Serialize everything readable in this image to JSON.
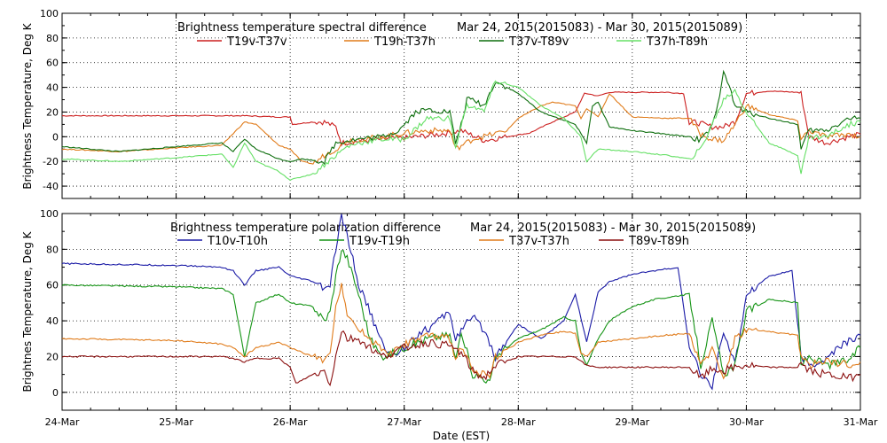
{
  "xlabel": "Date (EST)",
  "x_ticks": [
    "24-Mar",
    "25-Mar",
    "26-Mar",
    "27-Mar",
    "28-Mar",
    "29-Mar",
    "30-Mar",
    "31-Mar"
  ],
  "chart_data": [
    {
      "type": "line",
      "title": "Brightness temperature spectral difference",
      "date_range": "Mar 24, 2015(2015083) - Mar 30, 2015(2015089)",
      "ylabel": "Brightness Temperature, Deg K",
      "xlabel": "Date (EST)",
      "xlim": [
        0,
        7
      ],
      "ylim": [
        -50,
        100
      ],
      "yticks": [
        -40,
        -20,
        0,
        20,
        40,
        60,
        80,
        100
      ],
      "grid": true,
      "series": [
        {
          "name": "T19v-T37v",
          "color": "#cc1f1f",
          "x": [
            0,
            1,
            1.2,
            1.4,
            1.5,
            1.6,
            1.9,
            2.0,
            2.02,
            2.2,
            2.3,
            2.4,
            2.45,
            2.8,
            3.0,
            3.3,
            3.5,
            3.7,
            3.9,
            4.1,
            4.3,
            4.5,
            4.58,
            4.6,
            4.7,
            4.8,
            5.0,
            5.3,
            5.45,
            5.5,
            5.55,
            5.7,
            5.8,
            5.9,
            6.0,
            6.2,
            6.45,
            6.48,
            6.55,
            6.7,
            6.9,
            7.0
          ],
          "y": [
            17,
            17,
            17,
            17,
            17,
            17,
            16,
            16,
            10,
            12,
            12,
            8,
            -5,
            -2,
            -1,
            2,
            5,
            -3,
            0,
            3,
            12,
            20,
            35,
            35,
            33,
            36,
            36,
            36,
            35,
            10,
            12,
            8,
            8,
            12,
            35,
            37,
            36,
            35,
            0,
            -5,
            0,
            2
          ]
        },
        {
          "name": "T19h-T37h",
          "color": "#e07b1a",
          "x": [
            0,
            0.5,
            1.0,
            1.4,
            1.6,
            1.7,
            1.9,
            2.0,
            2.1,
            2.2,
            2.3,
            2.4,
            2.5,
            2.6,
            2.8,
            3.0,
            3.2,
            3.4,
            3.45,
            3.6,
            3.9,
            4.0,
            4.1,
            4.2,
            4.3,
            4.5,
            4.55,
            4.6,
            4.7,
            4.8,
            5.0,
            5.3,
            5.5,
            5.6,
            5.65,
            5.7,
            5.8,
            5.9,
            6.0,
            6.2,
            6.45,
            6.48,
            6.55,
            6.7,
            6.9,
            7.0
          ],
          "y": [
            -10,
            -12,
            -9,
            -7,
            12,
            10,
            -7,
            -10,
            -20,
            -22,
            -15,
            -10,
            -3,
            -2,
            0,
            3,
            5,
            5,
            -10,
            -2,
            5,
            15,
            20,
            25,
            28,
            25,
            15,
            23,
            16,
            35,
            16,
            15,
            15,
            2,
            0,
            -2,
            -3,
            10,
            25,
            18,
            13,
            -2,
            5,
            0,
            2,
            0
          ]
        },
        {
          "name": "T37v-T89v",
          "color": "#0d6e0d",
          "x": [
            0,
            0.5,
            1.0,
            1.4,
            1.5,
            1.6,
            1.7,
            1.9,
            2.0,
            2.1,
            2.3,
            2.4,
            2.5,
            2.6,
            2.8,
            2.95,
            3.1,
            3.2,
            3.4,
            3.45,
            3.5,
            3.55,
            3.6,
            3.7,
            3.8,
            4.0,
            4.2,
            4.5,
            4.6,
            4.65,
            4.7,
            4.8,
            5.0,
            5.3,
            5.5,
            5.6,
            5.7,
            5.75,
            5.8,
            5.9,
            6.0,
            6.2,
            6.45,
            6.48,
            6.55,
            6.7,
            6.9,
            7.0
          ],
          "y": [
            -8,
            -12,
            -8,
            -5,
            -12,
            -2,
            -10,
            -18,
            -20,
            -18,
            -20,
            -5,
            -3,
            -2,
            0,
            5,
            20,
            22,
            20,
            -5,
            10,
            30,
            30,
            25,
            45,
            35,
            20,
            10,
            -5,
            25,
            28,
            8,
            5,
            2,
            0,
            -3,
            8,
            25,
            55,
            25,
            20,
            15,
            10,
            -10,
            5,
            5,
            15,
            15
          ]
        },
        {
          "name": "T37h-T89h",
          "color": "#66e066",
          "x": [
            0,
            0.5,
            1.0,
            1.4,
            1.5,
            1.6,
            1.7,
            1.9,
            2.0,
            2.2,
            2.4,
            2.5,
            2.6,
            2.8,
            3.0,
            3.2,
            3.4,
            3.45,
            3.5,
            3.55,
            3.6,
            3.7,
            3.8,
            4.0,
            4.2,
            4.4,
            4.5,
            4.55,
            4.6,
            4.7,
            5.0,
            5.3,
            5.5,
            5.6,
            5.7,
            5.8,
            5.9,
            6.0,
            6.2,
            6.45,
            6.48,
            6.55,
            6.7,
            6.9,
            7.0
          ],
          "y": [
            -18,
            -20,
            -17,
            -14,
            -25,
            -5,
            -20,
            -28,
            -35,
            -30,
            -15,
            -8,
            -5,
            -2,
            -2,
            15,
            15,
            -10,
            10,
            25,
            25,
            20,
            45,
            40,
            25,
            15,
            5,
            0,
            -20,
            -10,
            -12,
            -15,
            -18,
            -10,
            10,
            30,
            38,
            20,
            -5,
            -15,
            -30,
            0,
            0,
            10,
            12
          ]
        }
      ]
    },
    {
      "type": "line",
      "title": "Brightness temperature polarization difference",
      "date_range": "Mar 24, 2015(2015083) - Mar 30, 2015(2015089)",
      "ylabel": "Brightnes Temperature, Deg K",
      "xlabel": "Date (EST)",
      "xlim": [
        0,
        7
      ],
      "ylim": [
        -10,
        100
      ],
      "yticks": [
        0,
        20,
        40,
        60,
        80,
        100
      ],
      "grid": true,
      "series": [
        {
          "name": "T10v-T10h",
          "color": "#1a1aa6",
          "x": [
            0,
            1.0,
            1.4,
            1.5,
            1.6,
            1.7,
            1.9,
            2.0,
            2.2,
            2.3,
            2.35,
            2.4,
            2.45,
            2.5,
            2.6,
            2.7,
            2.8,
            2.9,
            3.0,
            3.1,
            3.2,
            3.3,
            3.4,
            3.45,
            3.5,
            3.6,
            3.7,
            3.8,
            4.0,
            4.2,
            4.4,
            4.5,
            4.6,
            4.7,
            4.8,
            5.0,
            5.2,
            5.4,
            5.5,
            5.6,
            5.7,
            5.8,
            5.9,
            6.0,
            6.2,
            6.4,
            6.48,
            6.55,
            6.7,
            6.8,
            7.0
          ],
          "y": [
            72,
            71,
            70,
            68,
            60,
            68,
            70,
            65,
            62,
            58,
            60,
            80,
            98,
            88,
            60,
            45,
            28,
            20,
            25,
            32,
            35,
            40,
            45,
            30,
            35,
            42,
            35,
            20,
            38,
            30,
            40,
            55,
            28,
            56,
            62,
            66,
            68,
            70,
            25,
            10,
            3,
            35,
            15,
            55,
            65,
            68,
            20,
            15,
            18,
            25,
            32
          ]
        },
        {
          "name": "T19v-T19h",
          "color": "#159415",
          "x": [
            0,
            1.0,
            1.4,
            1.5,
            1.6,
            1.7,
            1.9,
            2.0,
            2.2,
            2.3,
            2.35,
            2.4,
            2.45,
            2.5,
            2.6,
            2.7,
            2.8,
            2.9,
            3.0,
            3.2,
            3.4,
            3.45,
            3.5,
            3.6,
            3.7,
            3.75,
            3.8,
            4.0,
            4.2,
            4.4,
            4.5,
            4.55,
            4.6,
            4.7,
            4.8,
            5.0,
            5.2,
            5.4,
            5.5,
            5.6,
            5.7,
            5.8,
            5.9,
            6.0,
            6.2,
            6.45,
            6.48,
            6.55,
            6.7,
            6.9,
            7.0
          ],
          "y": [
            60,
            59,
            58,
            55,
            20,
            50,
            55,
            50,
            48,
            40,
            45,
            65,
            80,
            75,
            55,
            30,
            20,
            22,
            25,
            30,
            32,
            18,
            35,
            10,
            8,
            5,
            20,
            30,
            35,
            42,
            40,
            22,
            15,
            30,
            40,
            48,
            52,
            54,
            55,
            15,
            40,
            10,
            15,
            45,
            52,
            50,
            15,
            20,
            15,
            18,
            25
          ]
        },
        {
          "name": "T37v-T37h",
          "color": "#e07b1a",
          "x": [
            0,
            1.0,
            1.4,
            1.5,
            1.6,
            1.7,
            1.9,
            2.0,
            2.2,
            2.3,
            2.35,
            2.4,
            2.45,
            2.5,
            2.6,
            2.7,
            2.8,
            2.9,
            3.0,
            3.2,
            3.4,
            3.45,
            3.5,
            3.6,
            3.7,
            3.75,
            3.8,
            4.0,
            4.2,
            4.4,
            4.5,
            4.55,
            4.6,
            4.7,
            5.0,
            5.3,
            5.5,
            5.6,
            5.7,
            5.8,
            5.9,
            6.0,
            6.2,
            6.45,
            6.48,
            6.55,
            6.7,
            6.9,
            7.0
          ],
          "y": [
            30,
            29,
            27,
            25,
            20,
            25,
            28,
            25,
            20,
            18,
            20,
            50,
            60,
            45,
            35,
            30,
            25,
            22,
            27,
            32,
            30,
            20,
            25,
            12,
            10,
            8,
            20,
            28,
            32,
            34,
            33,
            22,
            20,
            28,
            30,
            32,
            33,
            14,
            25,
            8,
            30,
            35,
            34,
            32,
            20,
            15,
            18,
            15,
            17
          ]
        },
        {
          "name": "T89v-T89h",
          "color": "#8b0f0f",
          "x": [
            0,
            1.0,
            1.4,
            1.5,
            1.6,
            1.7,
            1.9,
            2.0,
            2.05,
            2.2,
            2.3,
            2.35,
            2.4,
            2.45,
            2.5,
            2.6,
            2.7,
            2.8,
            2.9,
            3.0,
            3.2,
            3.4,
            3.5,
            3.6,
            3.7,
            3.8,
            4.0,
            4.2,
            4.4,
            4.5,
            4.6,
            4.7,
            5.0,
            5.3,
            5.5,
            5.6,
            5.7,
            5.8,
            5.9,
            6.0,
            6.2,
            6.45,
            6.48,
            6.55,
            6.7,
            6.9,
            7.0
          ],
          "y": [
            20,
            20,
            20,
            19,
            17,
            19,
            19,
            14,
            5,
            10,
            12,
            5,
            20,
            35,
            30,
            30,
            25,
            20,
            22,
            25,
            28,
            26,
            22,
            12,
            8,
            15,
            20,
            20,
            20,
            20,
            15,
            14,
            14,
            14,
            14,
            8,
            13,
            12,
            14,
            15,
            14,
            14,
            16,
            12,
            10,
            8,
            10
          ]
        }
      ]
    }
  ]
}
